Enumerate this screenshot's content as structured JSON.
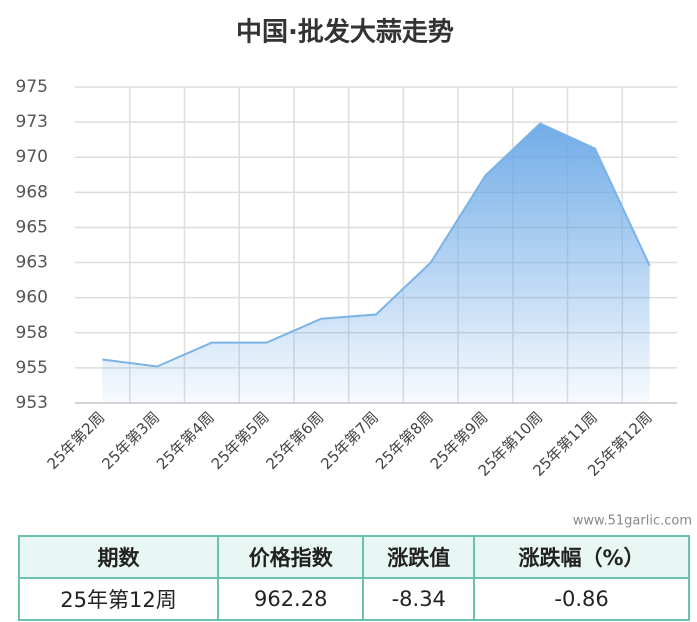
{
  "chart_data": {
    "type": "area",
    "title": "中国·批发大蒜走势",
    "categories": [
      "25年第2周",
      "25年第3周",
      "25年第4周",
      "25年第5周",
      "25年第6周",
      "25年第7周",
      "25年第8周",
      "25年第9周",
      "25年第10周",
      "25年第11周",
      "25年第12周"
    ],
    "values": [
      955.6,
      955.1,
      956.8,
      956.8,
      958.5,
      958.8,
      962.5,
      968.7,
      972.4,
      970.62,
      962.28
    ],
    "color": "#7ab3e8",
    "ylim": [
      952.5,
      975
    ],
    "yticks": [
      {
        "value": 952.5,
        "label": "953"
      },
      955,
      {
        "value": 957.5,
        "label": "958"
      },
      960,
      {
        "value": 962.5,
        "label": "963"
      },
      965,
      {
        "value": 967.5,
        "label": "968"
      },
      970,
      {
        "value": 972.5,
        "label": "973"
      },
      975
    ],
    "grid": true
  },
  "watermark": "www.51garlic.com",
  "table": {
    "header": [
      "期数",
      "价格指数",
      "涨跌值",
      "涨跌幅（%）"
    ],
    "rows": [
      [
        "25年第12周",
        "962.28",
        "-8.34",
        "-0.86"
      ]
    ]
  }
}
